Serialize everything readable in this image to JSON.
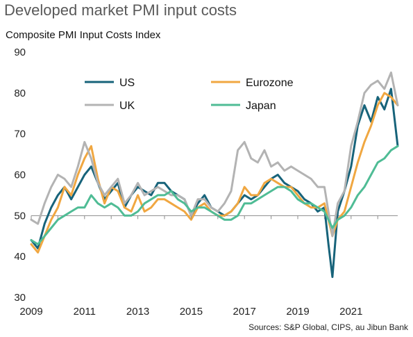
{
  "title": "Developed market PMI input costs",
  "chart_data": {
    "type": "line",
    "ylabel": "Composite PMI Input Costs Index",
    "ylim": [
      30,
      90
    ],
    "yticks": [
      "30",
      "40",
      "50",
      "60",
      "70",
      "80",
      "90"
    ],
    "xlim": [
      2009,
      2022.75
    ],
    "xticks": [
      "2009",
      "2011",
      "2013",
      "2015",
      "2017",
      "2019",
      "2021"
    ],
    "reference_line": 50,
    "source": "Sources: S&P Global, CIPS, au Jibun Bank",
    "legend_position": "top-left",
    "series": [
      {
        "name": "US",
        "color": "#17637a",
        "points": [
          [
            2009.0,
            44
          ],
          [
            2009.25,
            42
          ],
          [
            2009.5,
            48
          ],
          [
            2009.75,
            52
          ],
          [
            2010.0,
            55
          ],
          [
            2010.25,
            57
          ],
          [
            2010.5,
            54
          ],
          [
            2010.75,
            57
          ],
          [
            2011.0,
            60
          ],
          [
            2011.25,
            62
          ],
          [
            2011.5,
            58
          ],
          [
            2011.75,
            54
          ],
          [
            2012.0,
            56
          ],
          [
            2012.25,
            58
          ],
          [
            2012.5,
            52
          ],
          [
            2012.75,
            55
          ],
          [
            2013.0,
            57
          ],
          [
            2013.25,
            56
          ],
          [
            2013.5,
            55
          ],
          [
            2013.75,
            58
          ],
          [
            2014.0,
            58
          ],
          [
            2014.25,
            56
          ],
          [
            2014.5,
            55
          ],
          [
            2014.75,
            54
          ],
          [
            2015.0,
            50
          ],
          [
            2015.25,
            53
          ],
          [
            2015.5,
            55
          ],
          [
            2015.75,
            52
          ],
          [
            2016.0,
            51
          ],
          [
            2016.25,
            50
          ],
          [
            2016.5,
            51
          ],
          [
            2016.75,
            53
          ],
          [
            2017.0,
            55
          ],
          [
            2017.25,
            54
          ],
          [
            2017.5,
            55
          ],
          [
            2017.75,
            57
          ],
          [
            2018.0,
            59
          ],
          [
            2018.25,
            60
          ],
          [
            2018.5,
            58
          ],
          [
            2018.75,
            57
          ],
          [
            2019.0,
            56
          ],
          [
            2019.25,
            54
          ],
          [
            2019.5,
            53
          ],
          [
            2019.75,
            51
          ],
          [
            2020.0,
            52
          ],
          [
            2020.15,
            43
          ],
          [
            2020.3,
            35
          ],
          [
            2020.5,
            51
          ],
          [
            2020.75,
            56
          ],
          [
            2021.0,
            62
          ],
          [
            2021.25,
            72
          ],
          [
            2021.5,
            77
          ],
          [
            2021.75,
            73
          ],
          [
            2022.0,
            79
          ],
          [
            2022.25,
            76
          ],
          [
            2022.5,
            81
          ],
          [
            2022.75,
            67
          ]
        ]
      },
      {
        "name": "Eurozone",
        "color": "#f0a741",
        "points": [
          [
            2009.0,
            43
          ],
          [
            2009.25,
            41
          ],
          [
            2009.5,
            45
          ],
          [
            2009.75,
            49
          ],
          [
            2010.0,
            52
          ],
          [
            2010.25,
            57
          ],
          [
            2010.5,
            55
          ],
          [
            2010.75,
            60
          ],
          [
            2011.0,
            64
          ],
          [
            2011.25,
            67
          ],
          [
            2011.5,
            59
          ],
          [
            2011.75,
            53
          ],
          [
            2012.0,
            57
          ],
          [
            2012.25,
            56
          ],
          [
            2012.5,
            52
          ],
          [
            2012.75,
            51
          ],
          [
            2013.0,
            55
          ],
          [
            2013.25,
            51
          ],
          [
            2013.5,
            52
          ],
          [
            2013.75,
            54
          ],
          [
            2014.0,
            54
          ],
          [
            2014.25,
            53
          ],
          [
            2014.5,
            52
          ],
          [
            2014.75,
            51
          ],
          [
            2015.0,
            49
          ],
          [
            2015.25,
            52
          ],
          [
            2015.5,
            53
          ],
          [
            2015.75,
            51
          ],
          [
            2016.0,
            50
          ],
          [
            2016.25,
            50
          ],
          [
            2016.5,
            51
          ],
          [
            2016.75,
            53
          ],
          [
            2017.0,
            57
          ],
          [
            2017.25,
            55
          ],
          [
            2017.5,
            55
          ],
          [
            2017.75,
            58
          ],
          [
            2018.0,
            59
          ],
          [
            2018.25,
            58
          ],
          [
            2018.5,
            57
          ],
          [
            2018.75,
            57
          ],
          [
            2019.0,
            55
          ],
          [
            2019.25,
            53
          ],
          [
            2019.5,
            52
          ],
          [
            2019.75,
            52
          ],
          [
            2020.0,
            53
          ],
          [
            2020.3,
            45
          ],
          [
            2020.5,
            49
          ],
          [
            2020.75,
            51
          ],
          [
            2021.0,
            57
          ],
          [
            2021.25,
            63
          ],
          [
            2021.5,
            68
          ],
          [
            2021.75,
            72
          ],
          [
            2022.0,
            77
          ],
          [
            2022.25,
            80
          ],
          [
            2022.5,
            79
          ],
          [
            2022.75,
            77
          ]
        ]
      },
      {
        "name": "UK",
        "color": "#b3b3b3",
        "points": [
          [
            2009.0,
            49
          ],
          [
            2009.25,
            48
          ],
          [
            2009.5,
            53
          ],
          [
            2009.75,
            57
          ],
          [
            2010.0,
            60
          ],
          [
            2010.25,
            59
          ],
          [
            2010.5,
            57
          ],
          [
            2010.75,
            62
          ],
          [
            2011.0,
            68
          ],
          [
            2011.25,
            64
          ],
          [
            2011.5,
            58
          ],
          [
            2011.75,
            55
          ],
          [
            2012.0,
            57
          ],
          [
            2012.25,
            59
          ],
          [
            2012.5,
            53
          ],
          [
            2012.75,
            55
          ],
          [
            2013.0,
            58
          ],
          [
            2013.25,
            55
          ],
          [
            2013.5,
            56
          ],
          [
            2013.75,
            57
          ],
          [
            2014.0,
            56
          ],
          [
            2014.25,
            55
          ],
          [
            2014.5,
            55
          ],
          [
            2014.75,
            54
          ],
          [
            2015.0,
            50
          ],
          [
            2015.25,
            54
          ],
          [
            2015.5,
            54
          ],
          [
            2015.75,
            52
          ],
          [
            2016.0,
            51
          ],
          [
            2016.25,
            53
          ],
          [
            2016.5,
            56
          ],
          [
            2016.75,
            66
          ],
          [
            2017.0,
            68
          ],
          [
            2017.25,
            64
          ],
          [
            2017.5,
            63
          ],
          [
            2017.75,
            66
          ],
          [
            2018.0,
            62
          ],
          [
            2018.25,
            63
          ],
          [
            2018.5,
            61
          ],
          [
            2018.75,
            62
          ],
          [
            2019.0,
            61
          ],
          [
            2019.25,
            60
          ],
          [
            2019.5,
            59
          ],
          [
            2019.75,
            57
          ],
          [
            2020.0,
            57
          ],
          [
            2020.3,
            45
          ],
          [
            2020.5,
            53
          ],
          [
            2020.75,
            56
          ],
          [
            2021.0,
            67
          ],
          [
            2021.25,
            73
          ],
          [
            2021.5,
            80
          ],
          [
            2021.75,
            82
          ],
          [
            2022.0,
            83
          ],
          [
            2022.25,
            81
          ],
          [
            2022.5,
            85
          ],
          [
            2022.75,
            77
          ]
        ]
      },
      {
        "name": "Japan",
        "color": "#4fbc95",
        "points": [
          [
            2009.0,
            44
          ],
          [
            2009.25,
            43
          ],
          [
            2009.5,
            45
          ],
          [
            2009.75,
            47
          ],
          [
            2010.0,
            49
          ],
          [
            2010.25,
            50
          ],
          [
            2010.5,
            51
          ],
          [
            2010.75,
            52
          ],
          [
            2011.0,
            52
          ],
          [
            2011.25,
            55
          ],
          [
            2011.5,
            53
          ],
          [
            2011.75,
            52
          ],
          [
            2012.0,
            53
          ],
          [
            2012.25,
            52
          ],
          [
            2012.5,
            50
          ],
          [
            2012.75,
            50
          ],
          [
            2013.0,
            51
          ],
          [
            2013.25,
            53
          ],
          [
            2013.5,
            54
          ],
          [
            2013.75,
            55
          ],
          [
            2014.0,
            55
          ],
          [
            2014.25,
            56
          ],
          [
            2014.5,
            54
          ],
          [
            2014.75,
            53
          ],
          [
            2015.0,
            51
          ],
          [
            2015.25,
            52
          ],
          [
            2015.5,
            52
          ],
          [
            2015.75,
            51
          ],
          [
            2016.0,
            50
          ],
          [
            2016.25,
            49
          ],
          [
            2016.5,
            49
          ],
          [
            2016.75,
            50
          ],
          [
            2017.0,
            53
          ],
          [
            2017.25,
            53
          ],
          [
            2017.5,
            54
          ],
          [
            2017.75,
            55
          ],
          [
            2018.0,
            56
          ],
          [
            2018.25,
            57
          ],
          [
            2018.5,
            57
          ],
          [
            2018.75,
            56
          ],
          [
            2019.0,
            54
          ],
          [
            2019.25,
            53
          ],
          [
            2019.5,
            53
          ],
          [
            2019.75,
            52
          ],
          [
            2020.0,
            51
          ],
          [
            2020.3,
            47
          ],
          [
            2020.5,
            49
          ],
          [
            2020.75,
            50
          ],
          [
            2021.0,
            52
          ],
          [
            2021.25,
            55
          ],
          [
            2021.5,
            57
          ],
          [
            2021.75,
            60
          ],
          [
            2022.0,
            63
          ],
          [
            2022.25,
            64
          ],
          [
            2022.5,
            66
          ],
          [
            2022.75,
            67
          ]
        ]
      }
    ]
  }
}
